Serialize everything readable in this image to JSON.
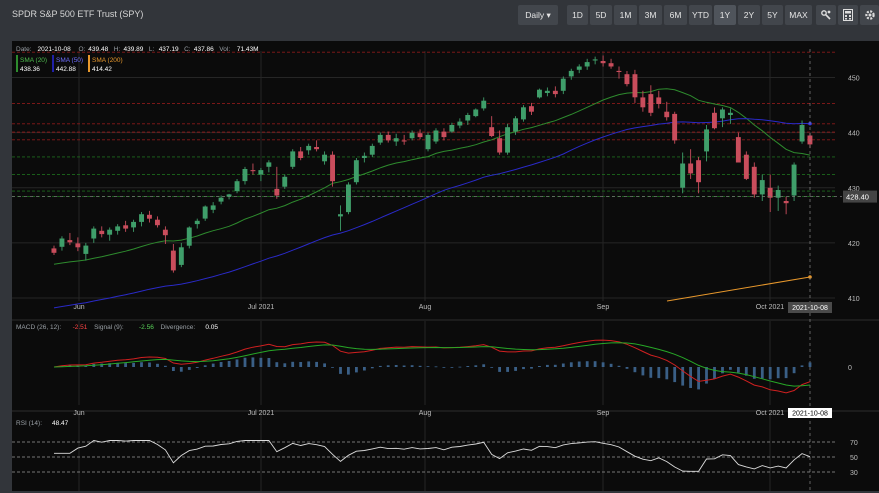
{
  "header": {
    "title": "SPDR S&P 500 ETF Trust (SPY)",
    "interval_label": "Daily",
    "ranges": [
      "1D",
      "5D",
      "1M",
      "3M",
      "6M",
      "YTD",
      "1Y",
      "2Y",
      "5Y",
      "MAX"
    ],
    "selected_range": "1Y",
    "icons": [
      "settings-icon",
      "calculator-icon",
      "gear-icon"
    ]
  },
  "info": {
    "date_label": "Date:",
    "date": "2021-10-08",
    "o_label": "O:",
    "open": "439.48",
    "h_label": "H:",
    "high": "439.89",
    "l_label": "L:",
    "low": "437.19",
    "c_label": "C:",
    "close": "437.86",
    "vol_label": "Vol:",
    "volume": "71.43M"
  },
  "sma": [
    {
      "label": "SMA (20)",
      "value": "438.36",
      "color": "#2e8b2e"
    },
    {
      "label": "SMA (50)",
      "value": "442.88",
      "color": "#2020a8"
    },
    {
      "label": "SMA (200)",
      "value": "414.42",
      "color": "#e8982c"
    }
  ],
  "price_axis": {
    "ticks": [
      "450",
      "440",
      "430",
      "420",
      "410"
    ],
    "last_price": "428.40",
    "min": 410,
    "max": 455
  },
  "x_axis": {
    "labels": [
      "Jun",
      "Jul 2021",
      "Aug",
      "Sep",
      "Oct 2021"
    ],
    "current_date": "2021-10-08"
  },
  "macd": {
    "label": "MACD (26, 12):",
    "value": "-2.51",
    "signal_label": "Signal (9):",
    "signal_value": "-2.56",
    "div_label": "Divergence:",
    "div_value": "0.05",
    "axis_tick": "0"
  },
  "rsi": {
    "label": "RSI (14):",
    "value": "48.47",
    "ticks": [
      "70",
      "50",
      "30"
    ]
  },
  "chart_data": {
    "type": "candlestick",
    "series": [
      {
        "name": "SPY",
        "ohlc": [
          [
            419.0,
            419.5,
            417.8,
            418.2
          ],
          [
            419.3,
            421.2,
            418.6,
            420.8
          ],
          [
            420.5,
            421.8,
            419.6,
            420.1
          ],
          [
            419.9,
            421.0,
            418.5,
            419.2
          ],
          [
            418.0,
            420.0,
            416.8,
            419.5
          ],
          [
            420.8,
            423.0,
            420.0,
            422.6
          ],
          [
            422.2,
            423.0,
            421.0,
            421.6
          ],
          [
            421.5,
            422.8,
            420.4,
            422.4
          ],
          [
            422.2,
            423.4,
            421.5,
            423.0
          ],
          [
            423.2,
            424.0,
            422.0,
            422.6
          ],
          [
            422.8,
            424.2,
            422.0,
            423.8
          ],
          [
            423.8,
            425.6,
            423.0,
            425.2
          ],
          [
            425.1,
            425.8,
            423.7,
            424.4
          ],
          [
            424.2,
            424.8,
            422.8,
            423.2
          ],
          [
            422.4,
            423.0,
            419.8,
            421.4
          ],
          [
            418.6,
            419.8,
            414.6,
            415.0
          ],
          [
            416.0,
            420.0,
            415.6,
            419.2
          ],
          [
            419.5,
            423.0,
            419.0,
            422.8
          ],
          [
            423.4,
            424.4,
            422.6,
            424.0
          ],
          [
            424.4,
            426.8,
            424.0,
            426.6
          ],
          [
            426.0,
            427.4,
            425.4,
            426.8
          ],
          [
            427.5,
            428.6,
            427.0,
            428.2
          ],
          [
            428.4,
            428.9,
            427.9,
            428.8
          ],
          [
            429.4,
            431.6,
            429.0,
            431.2
          ],
          [
            431.2,
            433.8,
            430.6,
            433.4
          ],
          [
            433.2,
            434.4,
            432.4,
            433.0
          ],
          [
            432.4,
            433.6,
            431.2,
            433.2
          ],
          [
            433.8,
            435.0,
            432.8,
            434.6
          ],
          [
            429.8,
            433.8,
            428.0,
            428.6
          ],
          [
            430.2,
            432.4,
            429.8,
            432.0
          ],
          [
            433.8,
            437.0,
            433.4,
            436.6
          ],
          [
            436.6,
            437.4,
            435.0,
            435.4
          ],
          [
            436.8,
            438.0,
            436.0,
            437.6
          ],
          [
            437.4,
            438.6,
            436.6,
            437.0
          ],
          [
            434.8,
            436.6,
            434.2,
            436.0
          ],
          [
            436.0,
            436.6,
            430.2,
            431.2
          ],
          [
            424.8,
            426.8,
            422.2,
            425.2
          ],
          [
            425.6,
            431.0,
            425.2,
            430.6
          ],
          [
            431.0,
            435.4,
            430.6,
            435.0
          ],
          [
            435.4,
            436.4,
            434.6,
            435.8
          ],
          [
            436.0,
            438.0,
            435.6,
            437.6
          ],
          [
            438.2,
            440.0,
            437.8,
            439.6
          ],
          [
            439.6,
            440.2,
            438.2,
            438.6
          ],
          [
            438.4,
            439.8,
            437.6,
            439.0
          ],
          [
            438.6,
            439.6,
            437.8,
            438.4
          ],
          [
            439.0,
            440.4,
            438.6,
            440.0
          ],
          [
            439.9,
            440.6,
            438.8,
            439.2
          ],
          [
            437.0,
            440.0,
            436.6,
            439.6
          ],
          [
            438.4,
            440.8,
            438.0,
            440.4
          ],
          [
            440.2,
            440.8,
            438.6,
            439.2
          ],
          [
            440.2,
            441.8,
            440.0,
            441.4
          ],
          [
            441.3,
            442.6,
            440.8,
            442.0
          ],
          [
            442.2,
            443.6,
            441.4,
            443.2
          ],
          [
            443.0,
            444.4,
            442.8,
            444.2
          ],
          [
            444.4,
            446.4,
            444.0,
            445.8
          ],
          [
            441.0,
            443.0,
            439.2,
            439.4
          ],
          [
            439.0,
            440.4,
            436.0,
            436.4
          ],
          [
            436.4,
            441.6,
            436.0,
            441.0
          ],
          [
            440.2,
            443.0,
            439.6,
            442.6
          ],
          [
            442.4,
            445.0,
            442.0,
            444.6
          ],
          [
            444.8,
            445.4,
            443.2,
            443.8
          ],
          [
            446.4,
            448.0,
            446.2,
            447.8
          ],
          [
            447.2,
            448.2,
            446.6,
            447.6
          ],
          [
            447.6,
            448.4,
            446.4,
            447.0
          ],
          [
            447.6,
            450.2,
            447.0,
            449.8
          ],
          [
            450.2,
            451.6,
            449.6,
            451.2
          ],
          [
            451.4,
            452.4,
            450.8,
            452.0
          ],
          [
            452.0,
            453.4,
            451.4,
            452.8
          ],
          [
            453.1,
            453.8,
            452.4,
            453.3
          ],
          [
            453.0,
            454.0,
            452.0,
            452.6
          ],
          [
            452.6,
            453.4,
            451.6,
            452.0
          ],
          [
            451.2,
            452.0,
            449.8,
            451.0
          ],
          [
            450.6,
            451.2,
            448.4,
            448.8
          ],
          [
            450.6,
            451.4,
            445.4,
            446.4
          ],
          [
            446.4,
            447.6,
            443.8,
            444.6
          ],
          [
            447.0,
            448.6,
            443.0,
            443.6
          ],
          [
            446.4,
            447.6,
            444.4,
            445.2
          ],
          [
            443.8,
            445.6,
            442.2,
            442.8
          ],
          [
            443.4,
            443.8,
            438.0,
            438.6
          ],
          [
            430.0,
            436.4,
            429.0,
            434.4
          ],
          [
            434.4,
            437.0,
            431.6,
            432.6
          ],
          [
            435.0,
            435.6,
            429.0,
            431.0
          ],
          [
            436.6,
            441.4,
            434.8,
            440.6
          ],
          [
            443.6,
            444.6,
            440.6,
            440.8
          ],
          [
            442.6,
            444.6,
            441.0,
            444.2
          ],
          [
            443.2,
            444.4,
            441.6,
            443.6
          ],
          [
            439.2,
            440.0,
            434.6,
            434.6
          ],
          [
            436.0,
            436.6,
            431.4,
            431.6
          ],
          [
            433.8,
            434.6,
            428.2,
            428.8
          ],
          [
            428.8,
            432.4,
            427.6,
            431.4
          ],
          [
            430.0,
            432.4,
            425.6,
            428.2
          ],
          [
            428.2,
            430.4,
            425.8,
            429.6
          ],
          [
            427.6,
            428.4,
            425.2,
            427.2
          ],
          [
            428.6,
            434.6,
            427.6,
            434.2
          ],
          [
            438.4,
            442.2,
            438.0,
            441.4
          ],
          [
            439.48,
            439.89,
            437.19,
            437.86
          ]
        ]
      },
      {
        "name": "SMA (20)"
      },
      {
        "name": "SMA (50)"
      },
      {
        "name": "SMA (200)"
      }
    ],
    "xlabels": [
      "Jun",
      "Jul 2021",
      "Aug",
      "Sep",
      "Oct 2021"
    ],
    "ylim": [
      410,
      455
    ]
  }
}
